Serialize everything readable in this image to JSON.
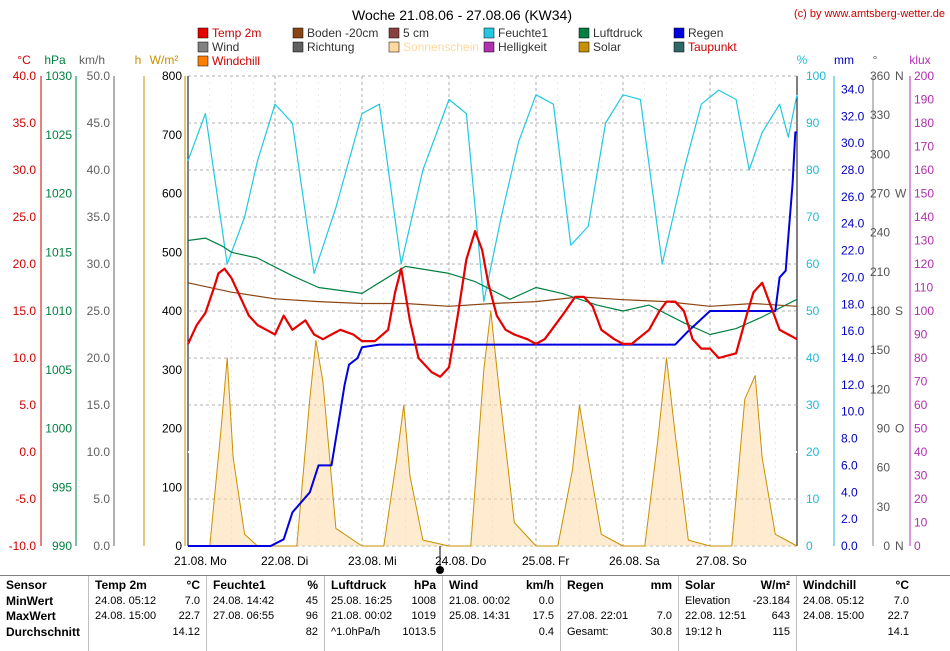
{
  "title": "Woche 21.08.06 - 27.08.06 (KW34)",
  "credit": "(c) by www.amtsberg-wetter.de",
  "legend": [
    {
      "label": "Temp 2m",
      "color": "#e60000"
    },
    {
      "label": "Boden -20cm",
      "color": "#8b4513"
    },
    {
      "label": "5 cm",
      "color": "#8b4040"
    },
    {
      "label": "Feuchte1",
      "color": "#22c8e0"
    },
    {
      "label": "Luftdruck",
      "color": "#008040"
    },
    {
      "label": "Regen",
      "color": "#0000e0"
    },
    {
      "label": "Wind",
      "color": "#808080"
    },
    {
      "label": "Richtung",
      "color": "#606060"
    },
    {
      "label": "Sonnenschein",
      "color": "#ffd8a0"
    },
    {
      "label": "Helligkeit",
      "color": "#b030b0"
    },
    {
      "label": "Solar",
      "color": "#c89000"
    },
    {
      "label": "Taupunkt",
      "color": "#306868"
    },
    {
      "label": "Windchill",
      "color": "#ff8000"
    }
  ],
  "axes": {
    "temp": {
      "unit": "°C",
      "color": "#d00000",
      "ticks": [
        "40.0",
        "35.0",
        "30.0",
        "25.0",
        "20.0",
        "15.0",
        "10.0",
        "5.0",
        "0.0",
        "-5.0",
        "-10.0"
      ]
    },
    "hpa": {
      "unit": "hPa",
      "color": "#008040",
      "ticks": [
        "1030",
        "1025",
        "1020",
        "1015",
        "1010",
        "1005",
        "1000",
        "995",
        "990"
      ]
    },
    "kmh": {
      "unit": "km/h",
      "color": "#606060",
      "ticks": [
        "50.0",
        "45.0",
        "40.0",
        "35.0",
        "30.0",
        "25.0",
        "20.0",
        "15.0",
        "10.0",
        "5.0",
        "0.0"
      ]
    },
    "h": {
      "unit": "h",
      "color": "#c89000"
    },
    "wm2": {
      "unit": "W/m²",
      "color": "#c89000",
      "ticks": [
        "800",
        "700",
        "600",
        "500",
        "400",
        "300",
        "200",
        "100",
        "0"
      ]
    },
    "pct": {
      "unit": "%",
      "color": "#22b8d8",
      "ticks": [
        "100",
        "90",
        "80",
        "70",
        "60",
        "50",
        "40",
        "30",
        "20",
        "10",
        "0"
      ]
    },
    "mm": {
      "unit": "mm",
      "color": "#0000c0",
      "ticks": [
        "34.0",
        "32.0",
        "30.0",
        "28.0",
        "26.0",
        "24.0",
        "22.0",
        "20.0",
        "18.0",
        "16.0",
        "14.0",
        "12.0",
        "10.0",
        "8.0",
        "6.0",
        "4.0",
        "2.0",
        "0.0"
      ]
    },
    "deg": {
      "unit": "°",
      "color": "#606060",
      "ticks": [
        "360",
        "330",
        "300",
        "270",
        "240",
        "210",
        "180",
        "150",
        "120",
        "90",
        "60",
        "30",
        "0"
      ],
      "dirs": [
        "N",
        "W",
        "S",
        "O",
        "N"
      ]
    },
    "klux": {
      "unit": "klux",
      "color": "#b030b0",
      "ticks": [
        "200",
        "190",
        "180",
        "170",
        "160",
        "150",
        "140",
        "130",
        "120",
        "110",
        "100",
        "90",
        "80",
        "70",
        "60",
        "50",
        "40",
        "30",
        "20",
        "10",
        "0"
      ]
    }
  },
  "x_labels": [
    "21.08.",
    "Mo",
    "22.08.",
    "Di",
    "23.08.",
    "Mi",
    "24.08.",
    "Do",
    "25.08.",
    "Fr",
    "26.08.",
    "Sa",
    "27.08.",
    "So"
  ],
  "chart_data": {
    "type": "line",
    "title": "Woche 21.08.06 - 27.08.06 (KW34)",
    "x_range": [
      "21.08.06 00:00",
      "28.08.06 00:00"
    ],
    "x_unit": "days since 21.08.06 00:00",
    "series": [
      {
        "name": "Temp 2m",
        "unit": "°C",
        "x": [
          0,
          0.1,
          0.2,
          0.3,
          0.35,
          0.42,
          0.5,
          0.6,
          0.7,
          0.8,
          0.9,
          1.0,
          1.1,
          1.2,
          1.35,
          1.45,
          1.55,
          1.65,
          1.75,
          1.9,
          2.0,
          2.15,
          2.3,
          2.38,
          2.45,
          2.55,
          2.65,
          2.8,
          2.9,
          3.0,
          3.1,
          3.2,
          3.3,
          3.38,
          3.45,
          3.55,
          3.65,
          3.75,
          3.9,
          4.0,
          4.1,
          4.3,
          4.45,
          4.55,
          4.65,
          4.75,
          4.9,
          5.0,
          5.1,
          5.3,
          5.42,
          5.5,
          5.6,
          5.7,
          5.8,
          5.9,
          6.0,
          6.1,
          6.3,
          6.42,
          6.5,
          6.6,
          6.7,
          6.8,
          6.9,
          7.0
        ],
        "values": [
          11.5,
          13.5,
          14.8,
          17.5,
          19.0,
          19.5,
          18.5,
          16.5,
          14.5,
          13.5,
          13.0,
          12.5,
          14.5,
          13.0,
          14.0,
          12.5,
          12.0,
          12.5,
          13.0,
          12.5,
          11.8,
          11.8,
          13.0,
          17.0,
          19.5,
          14.0,
          10.0,
          8.5,
          8.0,
          9.0,
          14.5,
          20.5,
          23.5,
          21.5,
          18.0,
          14.5,
          13.0,
          12.5,
          12.0,
          11.5,
          12.0,
          14.5,
          16.5,
          16.5,
          15.5,
          13.0,
          12.0,
          11.5,
          11.5,
          13.0,
          15.0,
          16.0,
          16.0,
          15.0,
          12.0,
          11.0,
          11.0,
          10.0,
          10.5,
          14.5,
          17.0,
          18.0,
          15.5,
          13.0,
          12.5,
          12.0
        ]
      },
      {
        "name": "Boden -20cm",
        "unit": "°C",
        "x": [
          0,
          0.5,
          1.0,
          1.5,
          2.0,
          2.5,
          3.0,
          3.5,
          4.0,
          4.5,
          5.0,
          5.5,
          6.0,
          6.5,
          7.0
        ],
        "values": [
          18.0,
          17.0,
          16.3,
          16.0,
          15.8,
          15.8,
          15.5,
          15.8,
          16.0,
          16.5,
          16.2,
          16.0,
          15.5,
          15.8,
          15.5
        ]
      },
      {
        "name": "Feuchte1",
        "unit": "%",
        "x": [
          0,
          0.2,
          0.45,
          0.65,
          0.8,
          1.0,
          1.2,
          1.45,
          1.7,
          2.0,
          2.2,
          2.45,
          2.7,
          3.0,
          3.2,
          3.4,
          3.6,
          3.8,
          4.0,
          4.2,
          4.4,
          4.6,
          4.8,
          5.0,
          5.2,
          5.45,
          5.7,
          5.9,
          6.1,
          6.3,
          6.45,
          6.6,
          6.8,
          6.9,
          7.0
        ],
        "values": [
          82,
          92,
          60,
          70,
          82,
          94,
          90,
          58,
          72,
          92,
          94,
          60,
          80,
          95,
          92,
          52,
          70,
          86,
          96,
          94,
          64,
          68,
          90,
          96,
          95,
          60,
          80,
          94,
          97,
          95,
          80,
          88,
          94,
          87,
          96
        ]
      },
      {
        "name": "Luftdruck",
        "unit": "hPa",
        "x": [
          0,
          0.2,
          0.4,
          0.5,
          0.8,
          1.2,
          1.5,
          2.0,
          2.5,
          3.0,
          3.3,
          3.7,
          4.0,
          4.3,
          4.7,
          5.0,
          5.3,
          5.7,
          6.0,
          6.3,
          6.6,
          7.0
        ],
        "values": [
          1016,
          1016.2,
          1015.5,
          1015,
          1014.5,
          1013,
          1012,
          1011.5,
          1013.8,
          1013.2,
          1012.5,
          1011,
          1012,
          1011.5,
          1010.5,
          1010,
          1010.5,
          1009,
          1008,
          1008.5,
          1009.5,
          1011
        ]
      },
      {
        "name": "Regen",
        "unit": "mm",
        "x": [
          0,
          0.95,
          1.1,
          1.2,
          1.4,
          1.5,
          1.65,
          1.75,
          1.8,
          1.85,
          1.95,
          2.0,
          2.2,
          2.3,
          2.35,
          3.0,
          3.5,
          4.0,
          4.5,
          5.0,
          5.5,
          5.6,
          5.75,
          6.0,
          6.5,
          6.75,
          6.8,
          6.87,
          6.9,
          6.95,
          6.98,
          7.0
        ],
        "values": [
          0,
          0,
          0.5,
          2.5,
          4.0,
          6.0,
          6.0,
          10.0,
          12.0,
          13.5,
          14.0,
          14.8,
          15.0,
          15.0,
          15.0,
          15.0,
          15.0,
          15.0,
          15.0,
          15.0,
          15.0,
          15.0,
          16.0,
          17.5,
          17.5,
          17.5,
          20.0,
          20.5,
          23.0,
          27.0,
          30.8,
          30.8
        ]
      },
      {
        "name": "Solar",
        "unit": "W/m²",
        "x": [
          0,
          0.25,
          0.38,
          0.45,
          0.52,
          0.65,
          0.8,
          1.25,
          1.4,
          1.47,
          1.55,
          1.7,
          2.0,
          2.25,
          2.4,
          2.48,
          2.55,
          2.7,
          3.0,
          3.25,
          3.4,
          3.48,
          3.58,
          3.75,
          4.0,
          4.25,
          4.42,
          4.5,
          4.6,
          4.75,
          5.0,
          5.25,
          5.4,
          5.5,
          5.6,
          5.75,
          6.0,
          6.25,
          6.4,
          6.52,
          6.6,
          6.75,
          7.0
        ],
        "values": [
          0,
          0,
          200,
          320,
          150,
          20,
          0,
          0,
          250,
          350,
          280,
          30,
          0,
          0,
          150,
          240,
          120,
          10,
          0,
          0,
          300,
          400,
          260,
          40,
          0,
          0,
          130,
          240,
          150,
          20,
          0,
          0,
          180,
          320,
          190,
          10,
          0,
          0,
          250,
          290,
          150,
          20,
          0
        ]
      }
    ],
    "ylim": {
      "temp": [
        -10,
        40
      ],
      "hpa": [
        990,
        1030
      ],
      "wind_kmh": [
        0,
        50
      ],
      "solar": [
        0,
        800
      ],
      "humidity": [
        0,
        100
      ],
      "rain_mm": [
        0,
        35
      ],
      "direction_deg": [
        0,
        360
      ],
      "klux": [
        0,
        200
      ]
    }
  },
  "stats": {
    "row_labels": [
      "Sensor",
      "MinWert",
      "MaxWert",
      "Durchschnitt"
    ],
    "temp": {
      "name": "Temp 2m",
      "unit": "°C",
      "min_t": "24.08.  05:12",
      "min": "7.0",
      "max_t": "24.08.  15:00",
      "max": "22.7",
      "avg": "14.12"
    },
    "feuchte": {
      "name": "Feuchte1",
      "unit": "%",
      "min_t": "24.08.  14:42",
      "min": "45",
      "max_t": "27.08.  06:55",
      "max": "96",
      "avg": "82"
    },
    "druck": {
      "name": "Luftdruck",
      "unit": "hPa",
      "min_t": "25.08.  16:25",
      "min": "1008",
      "max_t": "21.08.  00:02",
      "max": "1019",
      "avg_l": "^1.0hPa/h",
      "avg": "1013.5"
    },
    "wind": {
      "name": "Wind",
      "unit": "km/h",
      "min_t": "21.08.  00:02",
      "min": "0.0",
      "max_t": "25.08.  14:31",
      "max": "17.5",
      "avg": "0.4"
    },
    "regen": {
      "name": "Regen",
      "unit": "mm",
      "max_t": "27.08.  22:01",
      "max": "7.0",
      "avg_l": "Gesamt:",
      "avg": "30.8"
    },
    "solar": {
      "name": "Solar",
      "unit": "W/m²",
      "min_l": "Elevation",
      "min": "-23.184",
      "max_t": "22.08.  12:51",
      "max": "643",
      "avg_l": "19:12 h",
      "avg": "115"
    },
    "windchill": {
      "name": "Windchill",
      "unit": "°C",
      "min_t": "24.08.  05:12",
      "min": "7.0",
      "max_t": "24.08.  15:00",
      "max": "22.7",
      "avg": "14.1"
    }
  }
}
